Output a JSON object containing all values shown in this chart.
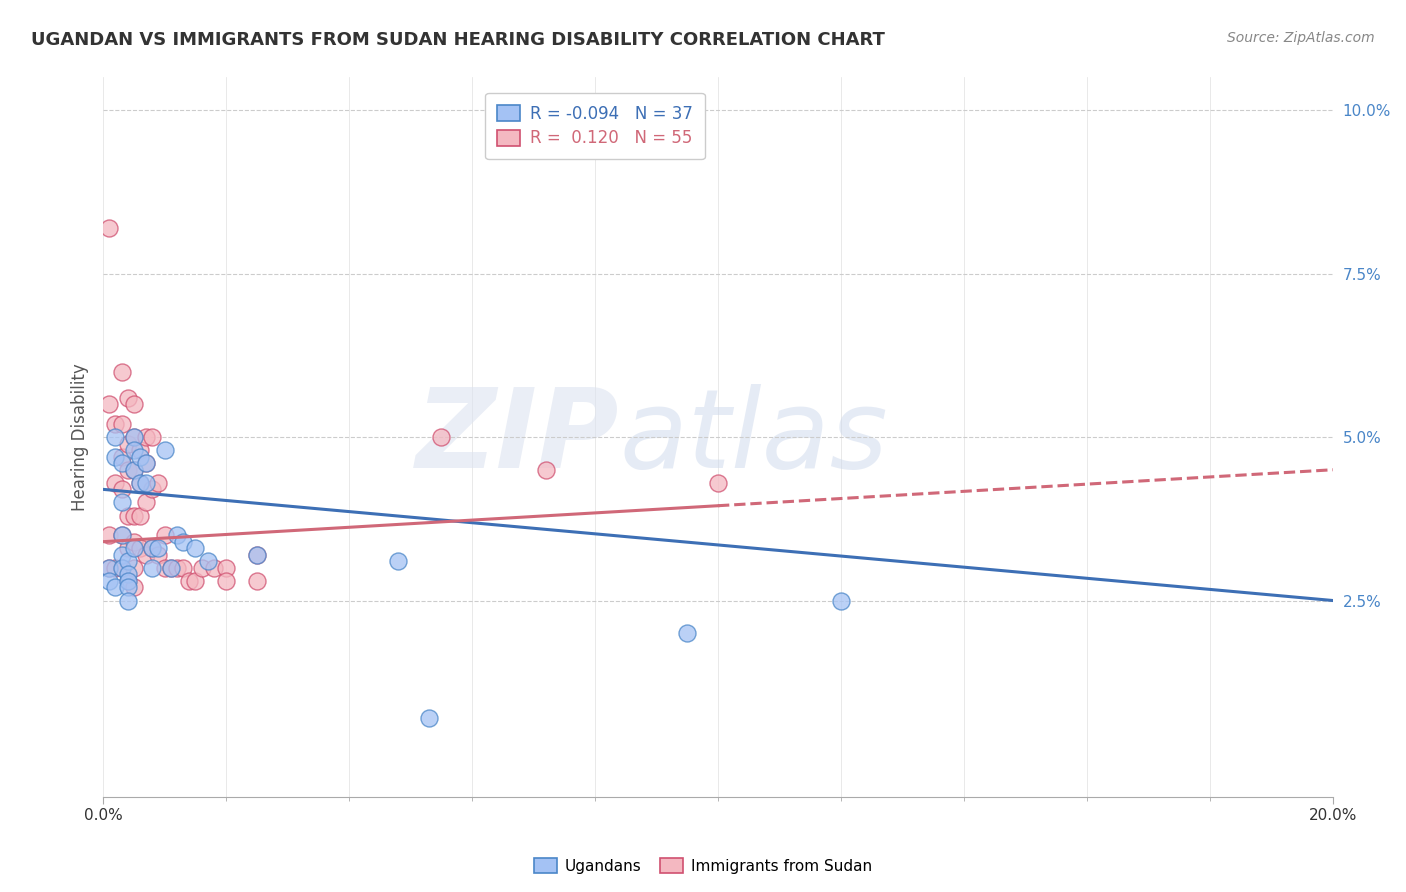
{
  "title": "UGANDAN VS IMMIGRANTS FROM SUDAN HEARING DISABILITY CORRELATION CHART",
  "source": "Source: ZipAtlas.com",
  "ylabel": "Hearing Disability",
  "xlim": [
    0.0,
    0.2
  ],
  "ylim": [
    -0.005,
    0.105
  ],
  "y_ticks": [
    0.025,
    0.05,
    0.075,
    0.1
  ],
  "y_tick_labels": [
    "2.5%",
    "5.0%",
    "7.5%",
    "10.0%"
  ],
  "ugandans_R": -0.094,
  "ugandans_N": 37,
  "sudan_R": 0.12,
  "sudan_N": 55,
  "ugandan_color": "#a4c2f4",
  "sudan_color": "#f4b8c1",
  "ugandan_edge_color": "#4a86c8",
  "sudan_edge_color": "#d05070",
  "ugandan_line_color": "#3d6fb5",
  "sudan_line_color": "#d06878",
  "ugandan_x": [
    0.001,
    0.001,
    0.002,
    0.002,
    0.002,
    0.003,
    0.003,
    0.003,
    0.003,
    0.003,
    0.004,
    0.004,
    0.004,
    0.004,
    0.004,
    0.005,
    0.005,
    0.005,
    0.005,
    0.006,
    0.006,
    0.007,
    0.007,
    0.008,
    0.008,
    0.009,
    0.01,
    0.011,
    0.012,
    0.013,
    0.015,
    0.017,
    0.025,
    0.048,
    0.053,
    0.095,
    0.12
  ],
  "ugandan_y": [
    0.03,
    0.028,
    0.05,
    0.047,
    0.027,
    0.046,
    0.04,
    0.035,
    0.032,
    0.03,
    0.031,
    0.029,
    0.028,
    0.027,
    0.025,
    0.05,
    0.048,
    0.045,
    0.033,
    0.047,
    0.043,
    0.046,
    0.043,
    0.033,
    0.03,
    0.033,
    0.048,
    0.03,
    0.035,
    0.034,
    0.033,
    0.031,
    0.032,
    0.031,
    0.007,
    0.02,
    0.025
  ],
  "sudan_x": [
    0.001,
    0.001,
    0.001,
    0.001,
    0.002,
    0.002,
    0.002,
    0.003,
    0.003,
    0.003,
    0.003,
    0.003,
    0.003,
    0.004,
    0.004,
    0.004,
    0.004,
    0.004,
    0.004,
    0.005,
    0.005,
    0.005,
    0.005,
    0.005,
    0.005,
    0.005,
    0.006,
    0.006,
    0.006,
    0.006,
    0.007,
    0.007,
    0.007,
    0.007,
    0.008,
    0.008,
    0.008,
    0.009,
    0.009,
    0.01,
    0.01,
    0.011,
    0.012,
    0.013,
    0.014,
    0.015,
    0.016,
    0.018,
    0.02,
    0.02,
    0.025,
    0.025,
    0.055,
    0.072,
    0.1
  ],
  "sudan_y": [
    0.082,
    0.055,
    0.035,
    0.03,
    0.052,
    0.043,
    0.03,
    0.06,
    0.052,
    0.047,
    0.042,
    0.035,
    0.03,
    0.056,
    0.049,
    0.045,
    0.038,
    0.033,
    0.028,
    0.055,
    0.05,
    0.045,
    0.038,
    0.034,
    0.03,
    0.027,
    0.048,
    0.043,
    0.038,
    0.033,
    0.05,
    0.046,
    0.04,
    0.032,
    0.05,
    0.042,
    0.033,
    0.043,
    0.032,
    0.035,
    0.03,
    0.03,
    0.03,
    0.03,
    0.028,
    0.028,
    0.03,
    0.03,
    0.03,
    0.028,
    0.032,
    0.028,
    0.05,
    0.045,
    0.043
  ],
  "ugandan_line_y0": 0.042,
  "ugandan_line_y1": 0.025,
  "sudan_line_y0": 0.034,
  "sudan_line_y1": 0.045
}
